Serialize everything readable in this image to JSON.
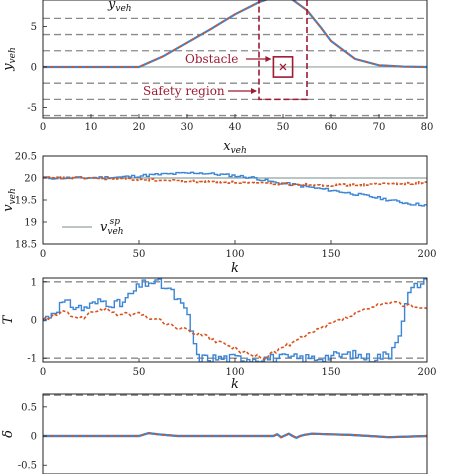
{
  "colors": {
    "blue": "#3a85d6",
    "orange": "#d9531e",
    "gray": "#8a8a8a",
    "maroon": "#9e1b32",
    "ref": "#8fa4a0"
  },
  "chart_data": [
    {
      "type": "line",
      "xlabel": "x_veh",
      "ylabel": "y_veh",
      "xlim": [
        0,
        80
      ],
      "ylim": [
        -6.3,
        9.5
      ],
      "xticks": [
        "0",
        "10",
        "20",
        "30",
        "40",
        "50",
        "60",
        "70",
        "80"
      ],
      "yticks": [
        "-5",
        "0",
        "5"
      ],
      "dashed_bounds": [
        -6,
        -4,
        -2,
        2,
        4,
        6
      ],
      "series": [
        {
          "x": [
            0,
            10,
            20,
            25,
            30,
            35,
            40,
            45,
            48,
            50,
            52,
            55,
            58,
            60,
            65,
            70,
            75,
            80
          ],
          "y": [
            0,
            0,
            0,
            1.3,
            3.0,
            4.7,
            6.5,
            8.0,
            8.6,
            8.7,
            8.3,
            7.0,
            4.8,
            3.2,
            1.0,
            0.2,
            0.05,
            0
          ]
        }
      ],
      "annotations": {
        "obstacle_label": "Obstacle",
        "safety_label": "Safety region",
        "obstacle": {
          "x": [
            48,
            52
          ],
          "y": [
            -1.25,
            1.25
          ],
          "center": [
            50,
            0
          ]
        },
        "safety_region": {
          "x": [
            45,
            55
          ],
          "y": [
            -4,
            9
          ]
        },
        "curve_label": "y_veh"
      }
    },
    {
      "type": "line",
      "xlabel": "k",
      "ylabel": "v_veh",
      "xlim": [
        0,
        200
      ],
      "ylim": [
        18.5,
        20.5
      ],
      "xticks": [
        "0",
        "50",
        "100",
        "150",
        "200"
      ],
      "yticks": [
        "18.5",
        "19",
        "19.5",
        "20",
        "20.5"
      ],
      "reference": 20,
      "legend": {
        "label": "v_veh^sp",
        "placement": "bottom-left"
      },
      "series": [
        {
          "name": "blue",
          "x": [
            0,
            20,
            40,
            60,
            80,
            100,
            110,
            120,
            130,
            140,
            150,
            160,
            170,
            180,
            190,
            200
          ],
          "y": [
            20.0,
            20.0,
            20.02,
            20.08,
            20.12,
            20.05,
            20.0,
            19.9,
            19.85,
            19.78,
            19.72,
            19.65,
            19.58,
            19.5,
            19.42,
            19.38
          ]
        },
        {
          "name": "orange",
          "x": [
            0,
            20,
            40,
            60,
            80,
            100,
            110,
            120,
            130,
            140,
            150,
            160,
            170,
            180,
            190,
            200
          ],
          "y": [
            20.0,
            20.0,
            19.98,
            19.95,
            19.92,
            19.9,
            19.88,
            19.87,
            19.86,
            19.85,
            19.84,
            19.84,
            19.85,
            19.87,
            19.88,
            19.9
          ]
        }
      ]
    },
    {
      "type": "line",
      "xlabel": "k",
      "ylabel": "T",
      "xlim": [
        0,
        200
      ],
      "ylim": [
        -1.1,
        1.1
      ],
      "xticks": [
        "0",
        "50",
        "100",
        "150",
        "200"
      ],
      "yticks": [
        "-1",
        "0",
        "1"
      ],
      "dashed_bounds": [
        -1,
        1
      ],
      "series": [
        {
          "name": "blue",
          "x": [
            0,
            10,
            20,
            30,
            40,
            50,
            55,
            60,
            65,
            70,
            75,
            80,
            90,
            100,
            120,
            140,
            150,
            160,
            170,
            180,
            185,
            190,
            195,
            200
          ],
          "y": [
            0,
            0.45,
            0.3,
            0.5,
            0.4,
            0.9,
            1.0,
            0.95,
            0.8,
            0.5,
            0.1,
            -1.0,
            -1.0,
            -1.0,
            -1.0,
            -1.0,
            -0.95,
            -0.9,
            -1.0,
            -0.9,
            -0.3,
            0.7,
            0.95,
            1.0
          ]
        },
        {
          "name": "orange",
          "x": [
            0,
            10,
            20,
            30,
            40,
            50,
            60,
            70,
            80,
            90,
            100,
            110,
            115,
            120,
            130,
            140,
            150,
            160,
            170,
            180,
            190,
            200
          ],
          "y": [
            0,
            0.2,
            0.05,
            0.3,
            0.15,
            0.15,
            0.0,
            -0.2,
            -0.35,
            -0.55,
            -0.75,
            -0.95,
            -1.0,
            -0.85,
            -0.6,
            -0.35,
            -0.1,
            0.1,
            0.3,
            0.45,
            0.4,
            0.3
          ]
        }
      ]
    },
    {
      "type": "line",
      "xlabel": "",
      "ylabel": "δ",
      "xlim": [
        0,
        200
      ],
      "ylim": [
        -0.65,
        0.72
      ],
      "xticks": [],
      "yticks": [
        "-0.5",
        "0",
        "0.5"
      ],
      "dashed_bounds": [
        0.7
      ],
      "series": [
        {
          "name": "blue",
          "x": [
            0,
            30,
            50,
            55,
            60,
            70,
            100,
            120,
            122,
            124,
            126,
            128,
            130,
            132,
            134,
            136,
            140,
            150,
            160,
            170,
            180,
            190,
            200
          ],
          "y": [
            0,
            0,
            0,
            0.05,
            0.03,
            0,
            0,
            0,
            0.03,
            -0.02,
            0.01,
            0.04,
            0.0,
            -0.03,
            0.0,
            0.02,
            0.04,
            0.03,
            0.02,
            0.0,
            -0.02,
            -0.01,
            0
          ]
        },
        {
          "name": "orange",
          "x": [
            0,
            30,
            50,
            55,
            60,
            70,
            100,
            120,
            122,
            124,
            126,
            128,
            130,
            132,
            134,
            136,
            140,
            150,
            160,
            170,
            180,
            190,
            200
          ],
          "y": [
            0,
            0,
            0,
            0.05,
            0.03,
            0,
            0,
            0,
            0.03,
            -0.02,
            0.01,
            0.04,
            0.0,
            -0.03,
            0.0,
            0.02,
            0.04,
            0.03,
            0.02,
            0.0,
            -0.02,
            -0.01,
            0
          ]
        }
      ]
    }
  ]
}
